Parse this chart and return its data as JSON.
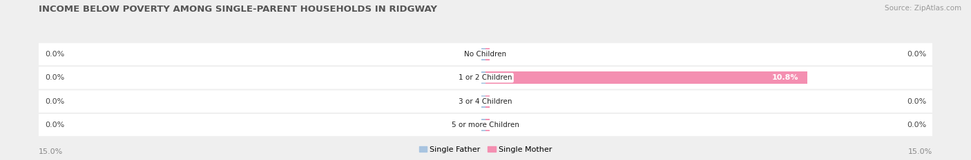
{
  "title": "INCOME BELOW POVERTY AMONG SINGLE-PARENT HOUSEHOLDS IN RIDGWAY",
  "source": "Source: ZipAtlas.com",
  "categories": [
    "No Children",
    "1 or 2 Children",
    "3 or 4 Children",
    "5 or more Children"
  ],
  "single_father": [
    0.0,
    0.0,
    0.0,
    0.0
  ],
  "single_mother": [
    0.0,
    10.8,
    0.0,
    0.0
  ],
  "father_color": "#a8c4e0",
  "mother_color": "#f48fb1",
  "axis_max": 15.0,
  "left_label": "15.0%",
  "right_label": "15.0%",
  "legend_father": "Single Father",
  "legend_mother": "Single Mother",
  "background_color": "#efefef",
  "row_bg_color": "#ffffff",
  "title_fontsize": 9.5,
  "source_fontsize": 7.5,
  "value_fontsize": 8,
  "cat_fontsize": 7.5,
  "legend_fontsize": 8,
  "axis_label_fontsize": 8
}
